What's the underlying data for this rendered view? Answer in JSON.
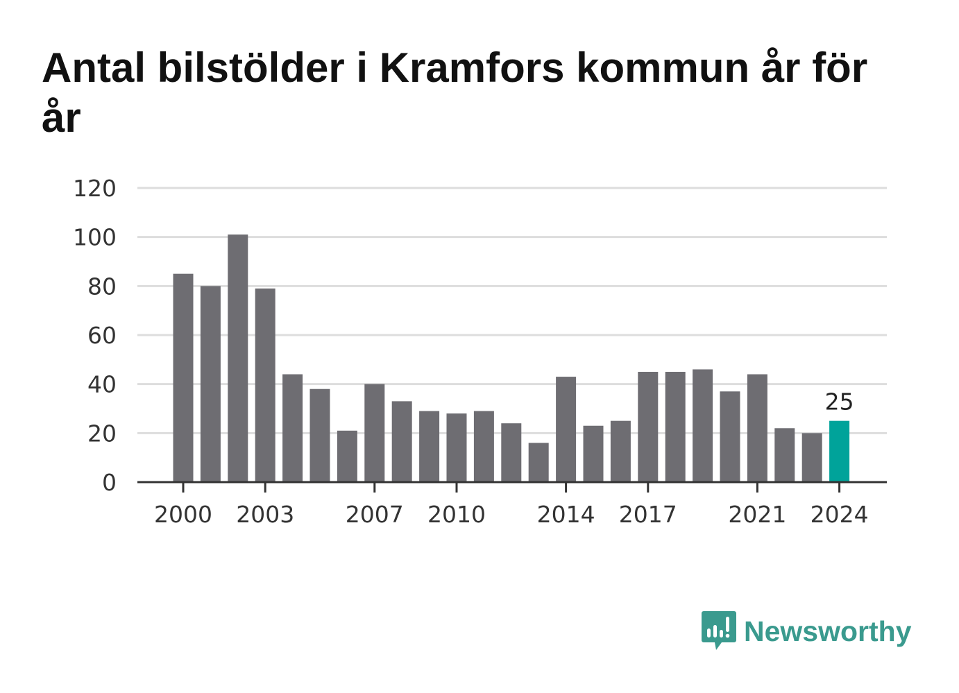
{
  "title": "Antal bilstölder i Kramfors kommun år för år",
  "brand": {
    "name": "Newsworthy",
    "color": "#3a9a8e"
  },
  "colors": {
    "bar": "#6e6d72",
    "highlight": "#00a39a",
    "grid": "#dddddd",
    "axis": "#333333"
  },
  "chart_data": {
    "type": "bar",
    "title": "Antal bilstölder i Kramfors kommun år för år",
    "xlabel": "",
    "ylabel": "",
    "ylim": [
      0,
      120
    ],
    "yticks": [
      0,
      20,
      40,
      60,
      80,
      100,
      120
    ],
    "categories": [
      "2000",
      "2001",
      "2002",
      "2003",
      "2004",
      "2005",
      "2006",
      "2007",
      "2008",
      "2009",
      "2010",
      "2011",
      "2012",
      "2013",
      "2014",
      "2015",
      "2016",
      "2017",
      "2018",
      "2019",
      "2020",
      "2021",
      "2022",
      "2023",
      "2024"
    ],
    "xtick_labels": [
      "2000",
      "2003",
      "2007",
      "2010",
      "2014",
      "2017",
      "2021",
      "2024"
    ],
    "values": [
      85,
      80,
      101,
      79,
      44,
      38,
      21,
      40,
      33,
      29,
      28,
      29,
      24,
      16,
      43,
      23,
      25,
      45,
      45,
      46,
      37,
      44,
      22,
      20,
      25
    ],
    "highlight": {
      "category": "2024",
      "label": "25"
    },
    "grid": true
  }
}
